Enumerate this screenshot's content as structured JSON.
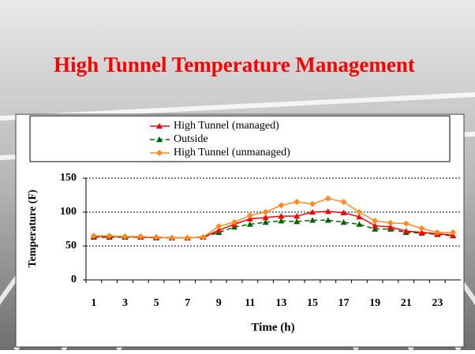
{
  "slide_title": "High Tunnel Temperature Management",
  "chart_data": {
    "type": "line",
    "x_label": "Time (h)",
    "y_label": "Temperature (F)",
    "categories": [
      "1",
      null,
      "3",
      null,
      "5",
      null,
      "7",
      null,
      "9",
      null,
      "11",
      null,
      "13",
      null,
      "15",
      null,
      "17",
      null,
      "19",
      null,
      "21",
      null,
      "23",
      null
    ],
    "series": [
      {
        "name": "High Tunnel (managed)",
        "color": "#ff0000",
        "marker": "triangle",
        "dash": false,
        "values": [
          64,
          64,
          64,
          63,
          63,
          62,
          62,
          63,
          73,
          82,
          90,
          92,
          94,
          94,
          100,
          101,
          99,
          93,
          80,
          78,
          72,
          70,
          68,
          66
        ]
      },
      {
        "name": "Outside",
        "color": "#006400",
        "marker": "triangle",
        "dash": true,
        "values": [
          63,
          63,
          63,
          63,
          62,
          62,
          62,
          63,
          70,
          78,
          82,
          85,
          87,
          86,
          88,
          88,
          85,
          82,
          75,
          75,
          70,
          69,
          67,
          65
        ]
      },
      {
        "name": "High Tunnel (unmanaged)",
        "color": "#ff8c1a",
        "marker": "diamond",
        "dash": false,
        "values": [
          65,
          65,
          64,
          64,
          63,
          62,
          62,
          63,
          79,
          85,
          95,
          100,
          110,
          115,
          112,
          120,
          115,
          100,
          87,
          84,
          83,
          76,
          70,
          70
        ]
      }
    ],
    "ylim": [
      0,
      150
    ],
    "yticks": [
      0,
      50,
      100,
      150
    ],
    "grid": true
  }
}
